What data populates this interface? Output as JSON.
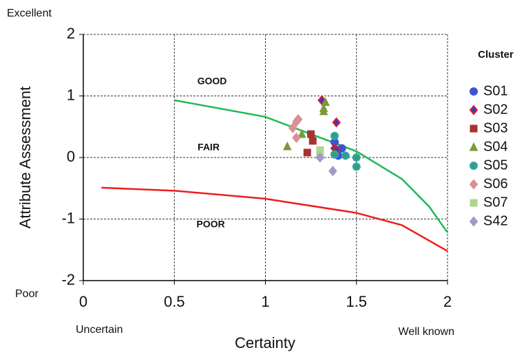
{
  "chart_data": {
    "type": "scatter",
    "xlabel": "Certainty",
    "ylabel": "Attribute Assessment",
    "xlim": [
      0,
      2
    ],
    "ylim": [
      -2,
      2
    ],
    "xticks": [
      0,
      0.5,
      1,
      1.5,
      2
    ],
    "yticks": [
      -2,
      -1,
      0,
      1,
      2
    ],
    "grid": true,
    "legend_title": "Cluster",
    "corner_labels": [
      "Excellent",
      "Poor",
      "Uncertain",
      "Well known"
    ],
    "annotations": [
      "GOOD",
      "FAIR",
      "POOR"
    ],
    "lines": [
      {
        "color": "#1db954",
        "x": [
          0.5,
          1,
          1.5,
          1.75,
          1.9,
          2
        ],
        "values": [
          0.93,
          0.66,
          0.1,
          -0.35,
          -0.8,
          -1.22
        ]
      },
      {
        "color": "#ee1c1c",
        "x": [
          0.1,
          0.5,
          1,
          1.5,
          1.75,
          2
        ],
        "values": [
          -0.49,
          -0.54,
          -0.67,
          -0.9,
          -1.1,
          -1.52
        ]
      }
    ],
    "series": [
      {
        "name": "S01",
        "marker": "circle",
        "color": "#3b55d6",
        "edge": "#3b55d6",
        "x": [
          1.38,
          1.4,
          1.42,
          1.38,
          1.4
        ],
        "values": [
          0.25,
          0.12,
          0.15,
          0.05,
          0.03
        ]
      },
      {
        "name": "S02",
        "marker": "diamond",
        "color": "#2f3fc0",
        "edge": "#e02020",
        "x": [
          1.31,
          1.39,
          1.38,
          1.39
        ],
        "values": [
          0.93,
          0.57,
          0.15,
          0.12
        ]
      },
      {
        "name": "S03",
        "marker": "square",
        "color": "#a83232",
        "edge": "#a83232",
        "x": [
          1.25,
          1.26,
          1.23
        ],
        "values": [
          0.38,
          0.27,
          0.08
        ]
      },
      {
        "name": "S04",
        "marker": "triangle",
        "color": "#7a9a3a",
        "edge": "#7a9a3a",
        "x": [
          1.33,
          1.32,
          1.32,
          1.2,
          1.12
        ],
        "values": [
          0.9,
          0.8,
          0.75,
          0.38,
          0.18
        ]
      },
      {
        "name": "S05",
        "marker": "circle",
        "color": "#2aa86a",
        "edge": "#3a9fc0",
        "x": [
          1.38,
          1.44,
          1.5,
          1.5,
          1.38
        ],
        "values": [
          0.35,
          0.03,
          0,
          -0.15,
          0.05
        ]
      },
      {
        "name": "S06",
        "marker": "diamond",
        "color": "#d99090",
        "edge": "#d99090",
        "x": [
          1.18,
          1.17,
          1.15,
          1.17
        ],
        "values": [
          0.62,
          0.58,
          0.48,
          0.32
        ]
      },
      {
        "name": "S07",
        "marker": "square",
        "color": "#b0d490",
        "edge": "#b0d490",
        "x": [
          1.3,
          1.3
        ],
        "values": [
          0.12,
          0.03
        ]
      },
      {
        "name": "S42",
        "marker": "diamond",
        "color": "#a09ac8",
        "edge": "#a09ac8",
        "x": [
          1.3,
          1.37
        ],
        "values": [
          0,
          -0.22
        ]
      }
    ]
  }
}
